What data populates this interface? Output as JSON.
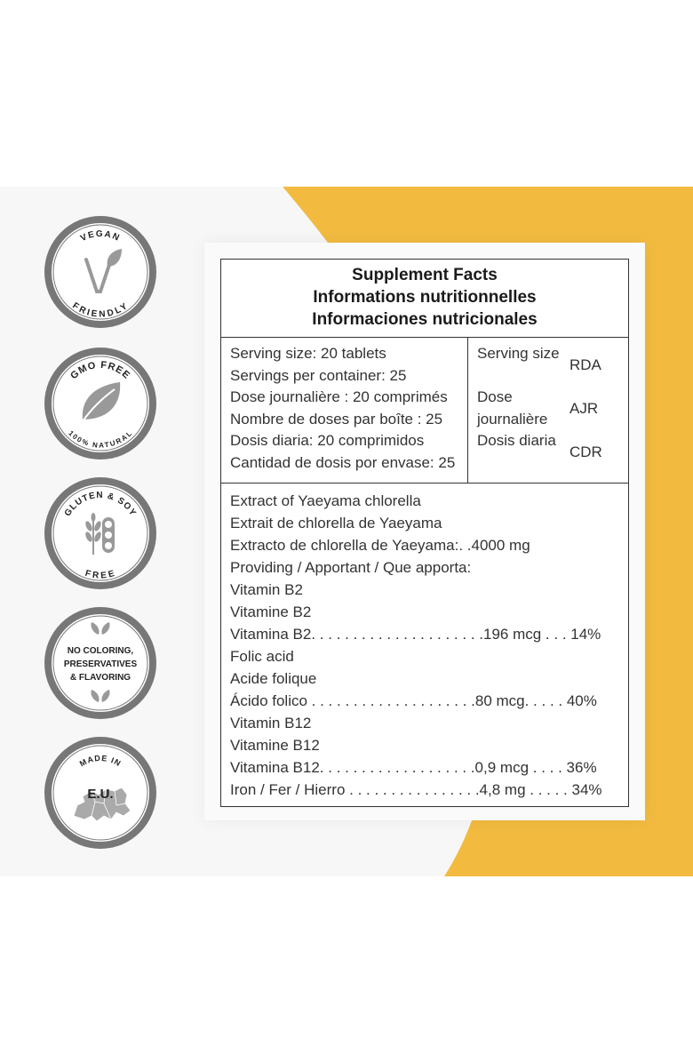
{
  "colors": {
    "accent": "#f2bb40",
    "accent_light": "#f5c660",
    "badge_ring": "#777777",
    "text": "#333333"
  },
  "badges": [
    {
      "icon": "vegan-v-leaf-icon",
      "top_text": "VEGAN",
      "bottom_text": "FRIENDLY"
    },
    {
      "icon": "leaf-icon",
      "top_text": "GMO FREE",
      "bottom_text": "100% NATURAL"
    },
    {
      "icon": "wheat-soy-icon",
      "top_text": "GLUTEN & SOY",
      "bottom_text": "FREE"
    },
    {
      "icon": "leaf-pair-icon",
      "line1": "NO COLORING,",
      "line2": "PRESERVATIVES",
      "line3": "& FLAVORING"
    },
    {
      "icon": "europe-map-icon",
      "top_text": "MADE IN",
      "center_text": "E.U."
    }
  ],
  "facts": {
    "title_en": "Supplement Facts",
    "title_fr": "Informations nutritionnelles",
    "title_es": "Informaciones nutricionales",
    "serving_lines": [
      "Serving size: 20 tablets",
      "Servings per container: 25",
      "Dose journalière : 20 comprimés",
      "Nombre de doses par boîte : 25",
      "Dosis diaria: 20 comprimidos",
      "Cantidad de dosis por envase: 25"
    ],
    "serving_headers": [
      {
        "label": "Serving size",
        "abbr": "RDA"
      },
      {
        "label": "Dose journalière",
        "abbr": "AJR"
      },
      {
        "label": "Dosis diaria",
        "abbr": "CDR"
      }
    ],
    "ingredient_lines": [
      "Extract of Yaeyama chlorella",
      "Extrait de chlorella de Yaeyama",
      "Extracto de chlorella de Yaeyama:. .4000 mg",
      "Providing / Apportant / Que apporta:",
      "Vitamin B2",
      "Vitamine B2",
      "Vitamina B2. . . . . . . . . . . . . . . . . . . . .196 mcg  . . . 14%",
      "Folic acid",
      "Acide folique",
      "Ácido folico . . . . . . . . . . . . . . . . . . . .80 mcg. . . . . 40%",
      "Vitamin B12",
      "Vitamine B12",
      "Vitamina B12. . . . . . . . . . . . . . . . . . .0,9 mcg . . . . 36%",
      "Iron / Fer / Hierro . . . . . . . . . . . . . . . .4,8 mg . . . . . 34%"
    ]
  }
}
